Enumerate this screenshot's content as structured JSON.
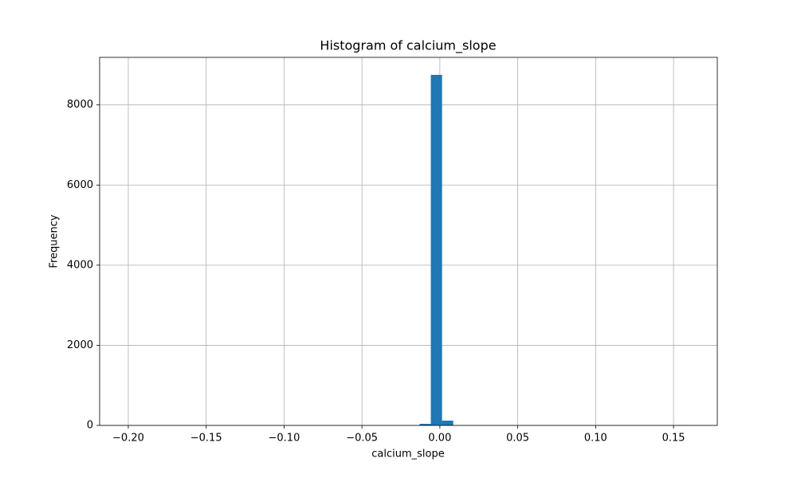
{
  "chart_data": {
    "type": "histogram",
    "title": "Histogram of calcium_slope",
    "x_label": "calcium_slope",
    "y_label": "Frequency",
    "color": "#1f77b4",
    "grid": true,
    "bins": [
      -0.2004,
      -0.1932,
      -0.186,
      -0.1788,
      -0.1716,
      -0.1644,
      -0.1571,
      -0.1499,
      -0.1427,
      -0.1355,
      -0.1283,
      -0.1211,
      -0.1139,
      -0.1067,
      -0.0995,
      -0.0923,
      -0.0851,
      -0.0779,
      -0.0706,
      -0.0634,
      -0.0562,
      -0.049,
      -0.0418,
      -0.0346,
      -0.0274,
      -0.0202,
      -0.013,
      -0.0058,
      0.0014,
      0.0086,
      0.0158,
      0.023,
      0.0303,
      0.0375,
      0.0447,
      0.0519,
      0.0591,
      0.0663,
      0.0735,
      0.0807,
      0.0879,
      0.0951,
      0.1023,
      0.1095,
      0.1168,
      0.124,
      0.1312,
      0.1384,
      0.1456,
      0.1528,
      0.16
    ],
    "counts": [
      1,
      0,
      0,
      0,
      0,
      0,
      0,
      0,
      0,
      0,
      0,
      0,
      0,
      0,
      0,
      0,
      0,
      0,
      0,
      0,
      0,
      0,
      0,
      0,
      0,
      0,
      40,
      8750,
      120,
      0,
      0,
      0,
      0,
      0,
      0,
      0,
      0,
      0,
      0,
      0,
      0,
      0,
      0,
      0,
      0,
      0,
      0,
      0,
      0,
      1
    ],
    "xlim": [
      -0.2184,
      0.1781
    ],
    "ylim": [
      0,
      9187
    ],
    "xticks": [
      {
        "value": -0.2,
        "label": "−0.20"
      },
      {
        "value": -0.15,
        "label": "−0.15"
      },
      {
        "value": -0.1,
        "label": "−0.10"
      },
      {
        "value": -0.05,
        "label": "−0.05"
      },
      {
        "value": 0,
        "label": "0.00"
      },
      {
        "value": 0.05,
        "label": "0.05"
      },
      {
        "value": 0.1,
        "label": "0.10"
      },
      {
        "value": 0.15,
        "label": "0.15"
      }
    ],
    "yticks": [
      0,
      2000,
      4000,
      6000,
      8000
    ]
  }
}
